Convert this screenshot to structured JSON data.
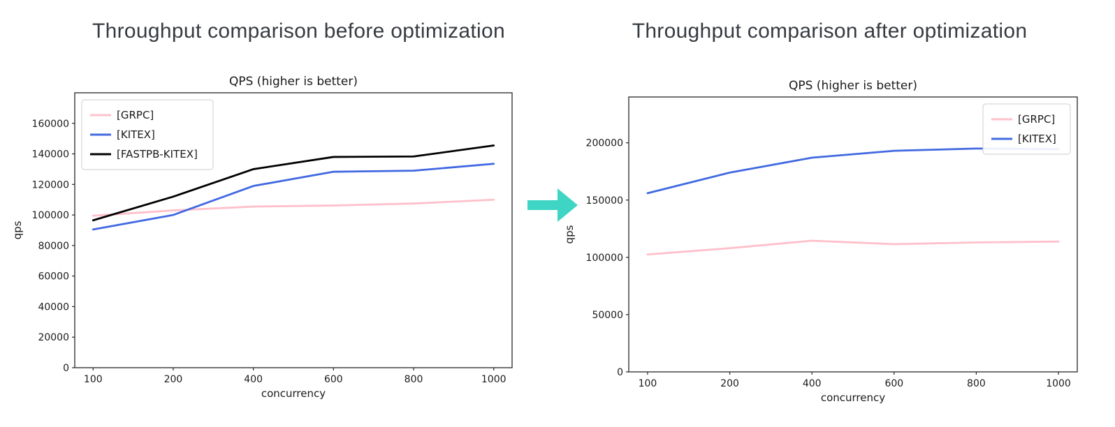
{
  "page_titles": {
    "before": "Throughput comparison before optimization",
    "after": "Throughput comparison after optimization"
  },
  "arrow": {
    "meaning": "transition-before-to-after",
    "color": "#3fd5c5"
  },
  "chart_data": [
    {
      "type": "line",
      "title": "QPS (higher is better)",
      "xlabel": "concurrency",
      "ylabel": "qps",
      "categories": [
        "100",
        "200",
        "400",
        "600",
        "800",
        "1000"
      ],
      "x_spacing": "even-categorical",
      "ylim": [
        0,
        180000
      ],
      "yticks": [
        0,
        20000,
        40000,
        60000,
        80000,
        100000,
        120000,
        140000,
        160000
      ],
      "grid": false,
      "legend_position": "upper-left",
      "series": [
        {
          "name": "[GRPC]",
          "color": "#ffc0cb",
          "values": [
            99500,
            103000,
            105500,
            106200,
            107500,
            110000
          ]
        },
        {
          "name": "[KITEX]",
          "color": "#4169e1",
          "values": [
            90500,
            100000,
            119000,
            128300,
            129000,
            133500
          ]
        },
        {
          "name": "[FASTPB-KITEX]",
          "color": "#000000",
          "values": [
            96500,
            112000,
            130000,
            138000,
            138300,
            145500
          ]
        }
      ]
    },
    {
      "type": "line",
      "title": "QPS (higher is better)",
      "xlabel": "concurrency",
      "ylabel": "qps",
      "categories": [
        "100",
        "200",
        "400",
        "600",
        "800",
        "1000"
      ],
      "x_spacing": "even-categorical",
      "ylim": [
        0,
        240000
      ],
      "yticks": [
        0,
        50000,
        100000,
        150000,
        200000
      ],
      "grid": false,
      "legend_position": "upper-right",
      "series": [
        {
          "name": "[GRPC]",
          "color": "#ffc0cb",
          "values": [
            102500,
            108000,
            114500,
            111500,
            113000,
            113800
          ]
        },
        {
          "name": "[KITEX]",
          "color": "#4169e1",
          "values": [
            156000,
            174000,
            187000,
            193000,
            195000,
            194400
          ]
        }
      ]
    }
  ]
}
